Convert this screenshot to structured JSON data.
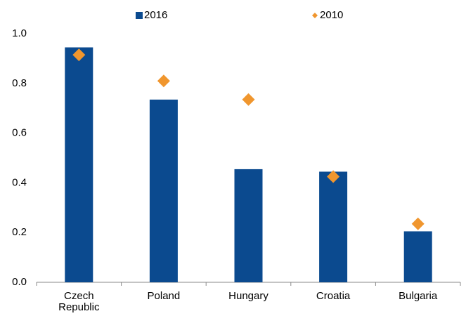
{
  "chart_data": {
    "type": "bar",
    "categories": [
      "Czech Republic",
      "Poland",
      "Hungary",
      "Croatia",
      "Bulgaria"
    ],
    "series": [
      {
        "name": "2016",
        "type": "bar",
        "color": "#0b4a8f",
        "values": [
          0.945,
          0.735,
          0.455,
          0.445,
          0.205
        ]
      },
      {
        "name": "2010",
        "type": "scatter",
        "color": "#f0962e",
        "values": [
          0.915,
          0.81,
          0.735,
          0.425,
          0.235
        ]
      }
    ],
    "ylim": [
      0,
      1
    ],
    "yticks": [
      {
        "value": 0,
        "label": "0.0"
      },
      0.2,
      0.4,
      0.6,
      0.8,
      {
        "value": 1,
        "label": "1.0"
      }
    ],
    "grid": false,
    "legend": "top"
  }
}
